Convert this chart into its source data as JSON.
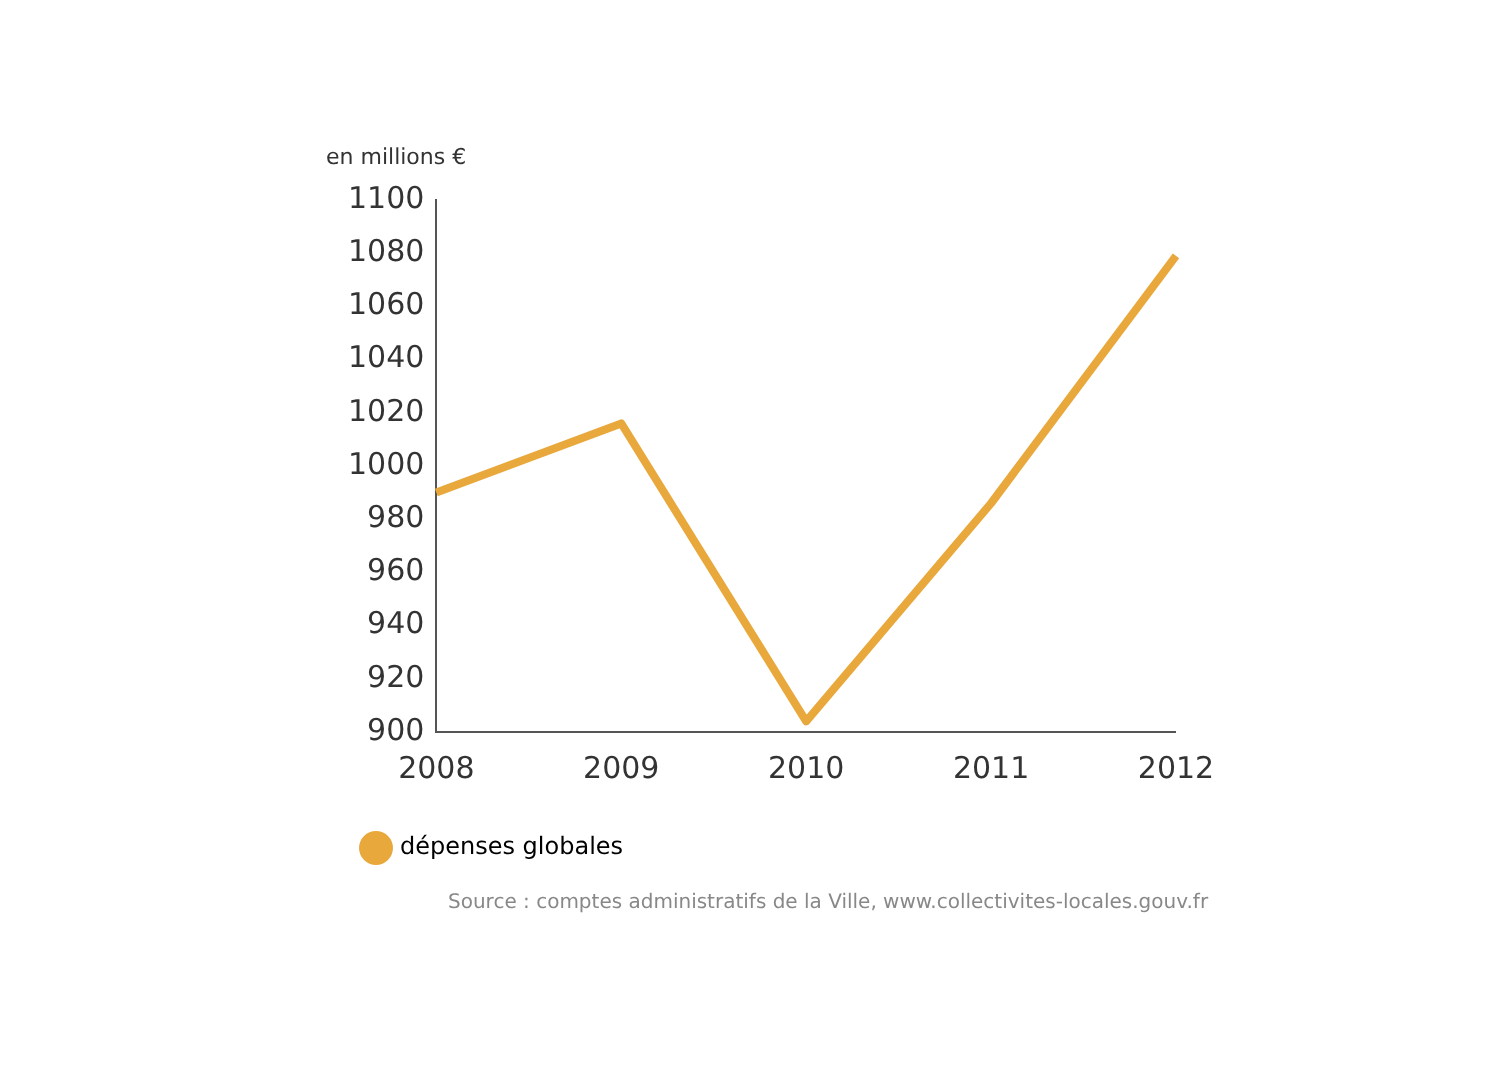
{
  "chart_data": {
    "type": "line",
    "ylabel": "en millions €",
    "categories": [
      "2008",
      "2009",
      "2010",
      "2011",
      "2012"
    ],
    "series": [
      {
        "name": "dépenses globales",
        "color": "#e8a83c",
        "values": [
          990,
          1016,
          904,
          986,
          1079
        ]
      }
    ],
    "ylim": [
      900,
      1100
    ],
    "yticks": [
      900,
      920,
      940,
      960,
      980,
      1000,
      1020,
      1040,
      1060,
      1080,
      1100
    ],
    "grid": false,
    "legend": "bottom",
    "marker": "none",
    "annotations": [
      "Source : comptes administratifs de la Ville, www.collectivites-locales.gouv.fr"
    ]
  }
}
